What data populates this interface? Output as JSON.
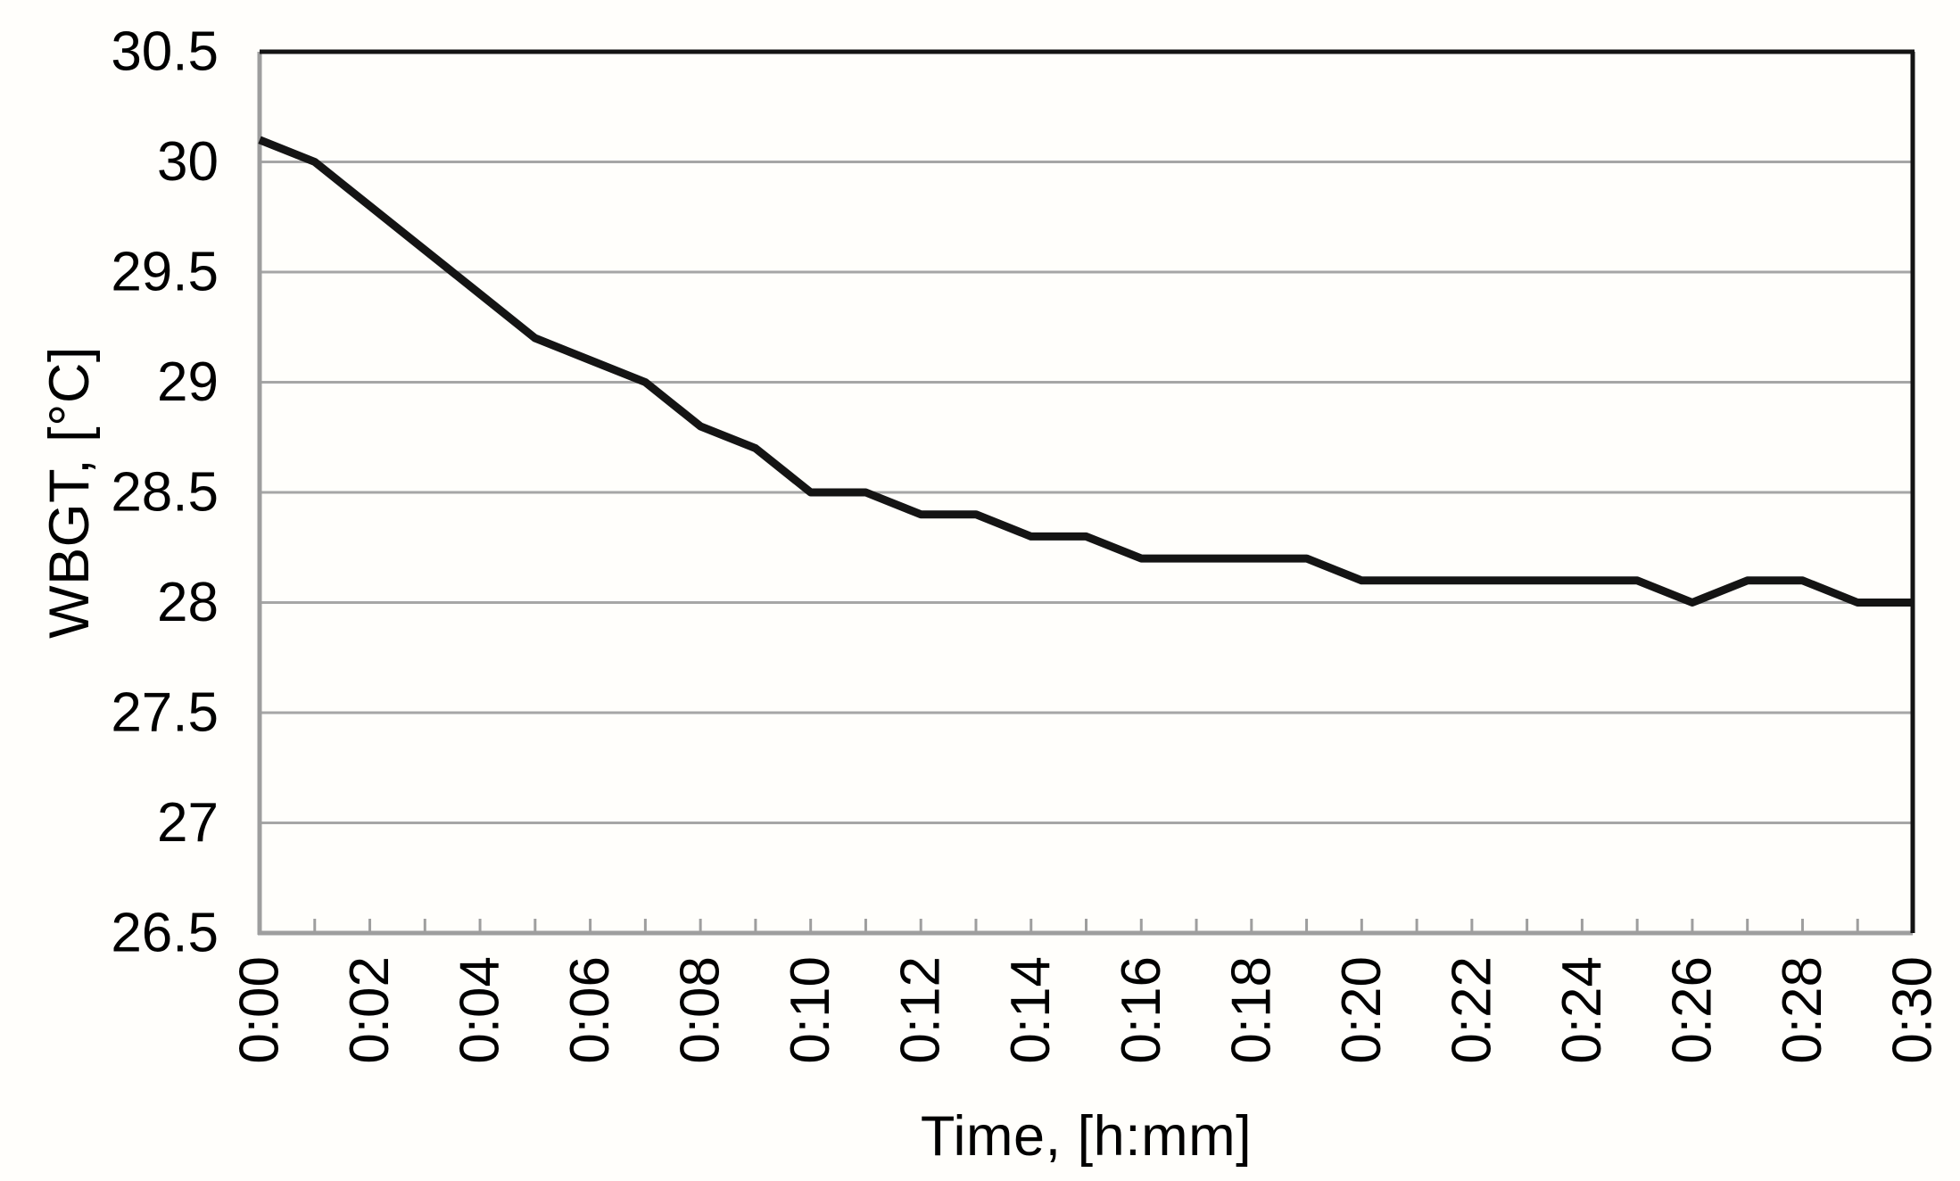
{
  "chart_data": {
    "type": "line",
    "title": "",
    "xlabel": "Time, [h:mm]",
    "ylabel": "WBGT, [°C]",
    "xlim": [
      0,
      30
    ],
    "ylim": [
      26.5,
      30.5
    ],
    "grid": "horizontal",
    "legend": "none",
    "x": [
      0,
      1,
      2,
      3,
      4,
      5,
      6,
      7,
      8,
      9,
      10,
      11,
      12,
      13,
      14,
      15,
      16,
      17,
      18,
      19,
      20,
      21,
      22,
      23,
      24,
      25,
      26,
      27,
      28,
      29,
      30
    ],
    "series": [
      {
        "name": "WBGT",
        "values": [
          30.1,
          30.0,
          29.8,
          29.6,
          29.4,
          29.2,
          29.1,
          29.0,
          28.8,
          28.7,
          28.5,
          28.5,
          28.4,
          28.4,
          28.3,
          28.3,
          28.2,
          28.2,
          28.2,
          28.2,
          28.1,
          28.1,
          28.1,
          28.1,
          28.1,
          28.1,
          28.0,
          28.1,
          28.1,
          28.0,
          28.0
        ]
      }
    ],
    "x_tick_minutes": [
      0,
      2,
      4,
      6,
      8,
      10,
      12,
      14,
      16,
      18,
      20,
      22,
      24,
      26,
      28,
      30
    ],
    "x_tick_labels": [
      "0:00",
      "0:02",
      "0:04",
      "0:06",
      "0:08",
      "0:10",
      "0:12",
      "0:14",
      "0:16",
      "0:18",
      "0:20",
      "0:22",
      "0:24",
      "0:26",
      "0:28",
      "0:30"
    ],
    "x_minor_tick_step": 1,
    "y_tick_values": [
      30.5,
      30,
      29.5,
      29,
      28.5,
      28,
      27.5,
      27,
      26.5
    ],
    "y_tick_labels": [
      "30.5",
      "30",
      "29.5",
      "29",
      "28.5",
      "28",
      "27.5",
      "27",
      "26.5"
    ],
    "colors": {
      "line": "#141414",
      "gridline": "#a6a6a6",
      "axis": "#9e9e9e",
      "plot_border": "#141414",
      "text": "#000000",
      "background": "#fffefb"
    }
  }
}
